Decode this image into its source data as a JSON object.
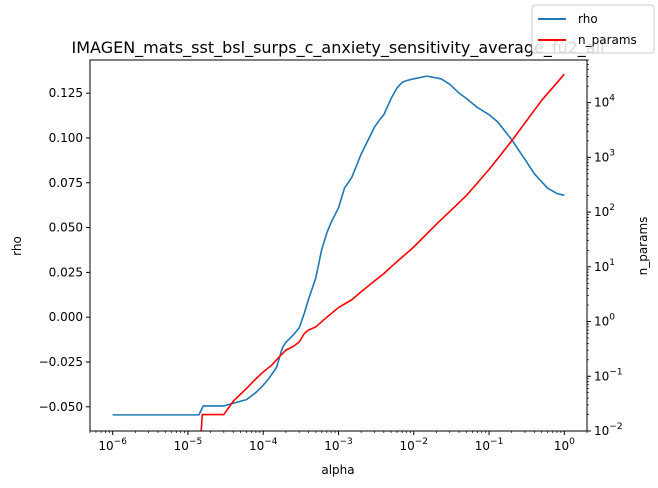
{
  "chart_data": {
    "type": "line",
    "title": "IMAGEN_mats_sst_bsl_surps_c_anxiety_sensitivity_average_fu2_all",
    "xlabel": "alpha",
    "ylabel": "rho",
    "y2label": "n_params",
    "xscale": "log",
    "y2scale": "log",
    "xlim": [
      5e-07,
      2
    ],
    "ylim": [
      -0.0635,
      0.1435
    ],
    "y2lim": [
      0.01,
      60000
    ],
    "grid": false,
    "legend_position": "top-right",
    "x_ticks": [
      {
        "value": 1e-06,
        "base": "10",
        "exp": "−6"
      },
      {
        "value": 1e-05,
        "base": "10",
        "exp": "−5"
      },
      {
        "value": 0.0001,
        "base": "10",
        "exp": "−4"
      },
      {
        "value": 0.001,
        "base": "10",
        "exp": "−3"
      },
      {
        "value": 0.01,
        "base": "10",
        "exp": "−2"
      },
      {
        "value": 0.1,
        "base": "10",
        "exp": "−1"
      },
      {
        "value": 1,
        "base": "10",
        "exp": "0"
      }
    ],
    "y_ticks": [
      {
        "value": -0.05,
        "label": "−0.050"
      },
      {
        "value": -0.025,
        "label": "−0.025"
      },
      {
        "value": 0.0,
        "label": "0.000"
      },
      {
        "value": 0.025,
        "label": "0.025"
      },
      {
        "value": 0.05,
        "label": "0.050"
      },
      {
        "value": 0.075,
        "label": "0.075"
      },
      {
        "value": 0.1,
        "label": "0.100"
      },
      {
        "value": 0.125,
        "label": "0.125"
      }
    ],
    "y2_ticks": [
      {
        "value": 0.01,
        "base": "10",
        "exp": "−2"
      },
      {
        "value": 0.1,
        "base": "10",
        "exp": "−1"
      },
      {
        "value": 1,
        "base": "10",
        "exp": "0"
      },
      {
        "value": 10,
        "base": "10",
        "exp": "1"
      },
      {
        "value": 100,
        "base": "10",
        "exp": "2"
      },
      {
        "value": 1000,
        "base": "10",
        "exp": "3"
      },
      {
        "value": 10000,
        "base": "10",
        "exp": "4"
      }
    ],
    "series": [
      {
        "name": "rho",
        "axis": "left",
        "color": "#1f77b4",
        "x": [
          1e-06,
          1.2e-05,
          1.4e-05,
          1.6e-05,
          3e-05,
          4e-05,
          6e-05,
          8e-05,
          0.0001,
          0.00012,
          0.00015,
          0.00018,
          0.0002,
          0.00025,
          0.0003,
          0.00035,
          0.0004,
          0.0005,
          0.0006,
          0.0007,
          0.0008,
          0.001,
          0.0012,
          0.0015,
          0.002,
          0.003,
          0.0035,
          0.004,
          0.005,
          0.006,
          0.007,
          0.008,
          0.01,
          0.015,
          0.023,
          0.03,
          0.04,
          0.05,
          0.07,
          0.1,
          0.13,
          0.2,
          0.3,
          0.4,
          0.6,
          0.8,
          1.0
        ],
        "y": [
          -0.0545,
          -0.0545,
          -0.0545,
          -0.0495,
          -0.0495,
          -0.048,
          -0.046,
          -0.042,
          -0.038,
          -0.034,
          -0.028,
          -0.017,
          -0.014,
          -0.01,
          -0.006,
          0.002,
          0.01,
          0.022,
          0.038,
          0.047,
          0.053,
          0.061,
          0.072,
          0.078,
          0.091,
          0.106,
          0.11,
          0.113,
          0.122,
          0.128,
          0.131,
          0.132,
          0.133,
          0.1345,
          0.133,
          0.13,
          0.125,
          0.122,
          0.117,
          0.113,
          0.109,
          0.099,
          0.088,
          0.08,
          0.072,
          0.069,
          0.068
        ]
      },
      {
        "name": "n_params",
        "axis": "right",
        "color": "#ff0000",
        "x": [
          1.5e-05,
          1.55e-05,
          3e-05,
          4e-05,
          6e-05,
          8e-05,
          0.0001,
          0.00013,
          0.00016,
          0.0002,
          0.00025,
          0.0003,
          0.00035,
          0.0004,
          0.0005,
          0.0007,
          0.001,
          0.0015,
          0.002,
          0.003,
          0.004,
          0.005,
          0.007,
          0.01,
          0.02,
          0.05,
          0.1,
          0.2,
          0.5,
          1.0
        ],
        "y": [
          0.01,
          0.02,
          0.02,
          0.035,
          0.06,
          0.09,
          0.12,
          0.16,
          0.22,
          0.3,
          0.35,
          0.42,
          0.6,
          0.7,
          0.8,
          1.2,
          1.8,
          2.5,
          3.5,
          5.5,
          7.5,
          10,
          15,
          23,
          60,
          200,
          600,
          2000,
          11000,
          33000
        ]
      }
    ]
  }
}
